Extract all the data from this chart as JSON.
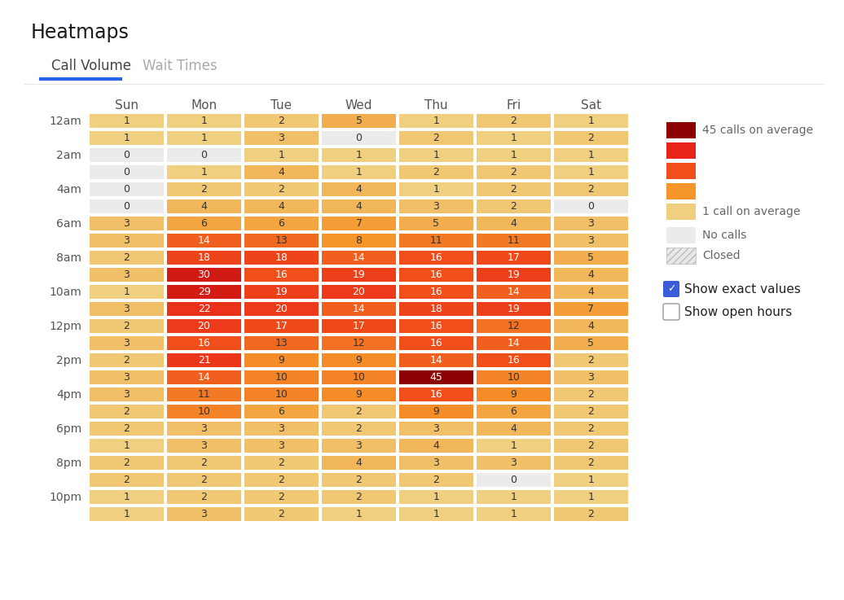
{
  "title": "Heatmaps",
  "tab1": "Call Volume",
  "tab2": "Wait Times",
  "days": [
    "Sun",
    "Mon",
    "Tue",
    "Wed",
    "Thu",
    "Fri",
    "Sat"
  ],
  "row_labels": [
    "12am",
    "",
    "2am",
    "",
    "4am",
    "",
    "6am",
    "",
    "8am",
    "",
    "10am",
    "",
    "12pm",
    "",
    "2pm",
    "",
    "4pm",
    "",
    "6pm",
    "",
    "8pm",
    "",
    "10pm",
    ""
  ],
  "data": [
    [
      1,
      1,
      2,
      5,
      1,
      2,
      1
    ],
    [
      1,
      1,
      3,
      0,
      2,
      1,
      2
    ],
    [
      0,
      0,
      1,
      1,
      1,
      1,
      1
    ],
    [
      0,
      1,
      4,
      1,
      2,
      2,
      1
    ],
    [
      0,
      2,
      2,
      4,
      1,
      2,
      2
    ],
    [
      0,
      4,
      4,
      4,
      3,
      2,
      0
    ],
    [
      3,
      6,
      6,
      7,
      5,
      4,
      3
    ],
    [
      3,
      14,
      13,
      8,
      11,
      11,
      3
    ],
    [
      2,
      18,
      18,
      14,
      16,
      17,
      5
    ],
    [
      3,
      30,
      16,
      19,
      16,
      19,
      4
    ],
    [
      1,
      29,
      19,
      20,
      16,
      14,
      4
    ],
    [
      3,
      22,
      20,
      14,
      18,
      19,
      7
    ],
    [
      2,
      20,
      17,
      17,
      16,
      12,
      4
    ],
    [
      3,
      16,
      13,
      12,
      16,
      14,
      5
    ],
    [
      2,
      21,
      9,
      9,
      14,
      16,
      2
    ],
    [
      3,
      14,
      10,
      10,
      45,
      10,
      3
    ],
    [
      3,
      11,
      10,
      9,
      16,
      9,
      2
    ],
    [
      2,
      10,
      6,
      2,
      9,
      6,
      2
    ],
    [
      2,
      3,
      3,
      2,
      3,
      4,
      2
    ],
    [
      1,
      3,
      3,
      3,
      4,
      1,
      2
    ],
    [
      2,
      2,
      2,
      4,
      3,
      3,
      2
    ],
    [
      2,
      2,
      2,
      2,
      2,
      0,
      1
    ],
    [
      1,
      2,
      2,
      2,
      1,
      1,
      1
    ],
    [
      1,
      3,
      2,
      1,
      1,
      1,
      2
    ]
  ],
  "color_stops": [
    [
      1,
      [
        240,
        208,
        128
      ]
    ],
    [
      8,
      [
        245,
        149,
        42
      ]
    ],
    [
      16,
      [
        240,
        78,
        26
      ]
    ],
    [
      25,
      [
        232,
        35,
        26
      ]
    ],
    [
      45,
      [
        139,
        0,
        0
      ]
    ]
  ],
  "color_none": "#EBEBEB",
  "color_white_text_threshold": 14,
  "legend_swatches": [
    "#8B0000",
    "#E8231A",
    "#F04E1A",
    "#F5952A",
    "#F0D080"
  ],
  "legend_top_label": "45 calls on average",
  "legend_bottom_label": "1 call on average",
  "legend_no_calls": "No calls",
  "legend_closed": "Closed",
  "checkbox1_label": "Show exact values",
  "checkbox1_checked": true,
  "checkbox2_label": "Show open hours",
  "checkbox2_checked": false,
  "title_fontsize": 17,
  "tab_fontsize": 12,
  "header_fontsize": 11,
  "row_label_fontsize": 10,
  "cell_fontsize": 9,
  "legend_fontsize": 10,
  "checkbox_fontsize": 11
}
